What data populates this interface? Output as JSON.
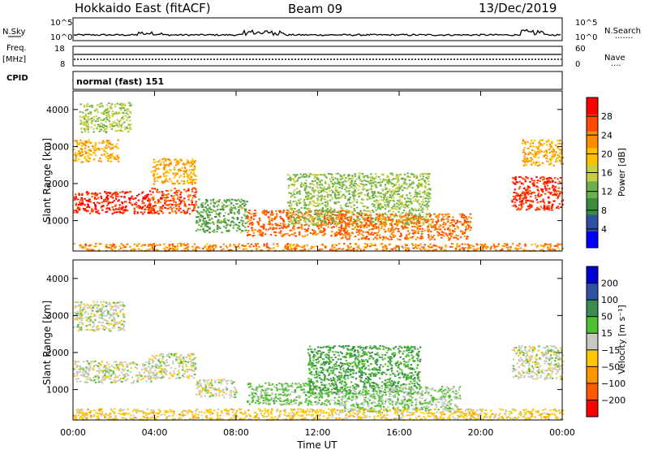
{
  "header": {
    "station": "Hokkaido East (fitACF)",
    "beam": "Beam 09",
    "date": "13/Dec/2019"
  },
  "panels": {
    "nsky": {
      "label": "N.Sky",
      "left_ticks": [
        "10^5",
        "10^0"
      ],
      "right_ticks": [
        "10^5",
        "10^0"
      ],
      "right_label": "N.Search",
      "right_marker": "·······"
    },
    "freq": {
      "label_top": "Freq.",
      "label_unit": "[MHz]",
      "left_ticks": [
        "18",
        "8"
      ],
      "right_ticks": [
        "60",
        "0"
      ],
      "right_label": "Nave",
      "right_marker": "····"
    },
    "cpid": {
      "label": "CPID",
      "value": "normal (fast) 151"
    }
  },
  "chart_data": [
    {
      "type": "heatmap",
      "title": "",
      "ylabel": "Slant Range [km]",
      "xlabel": "",
      "ylim": [
        180,
        4500
      ],
      "yticks": [
        "4000",
        "3000",
        "2000",
        "1000"
      ],
      "x": [
        "00:00",
        "04:00",
        "08:00",
        "12:00",
        "16:00",
        "20:00",
        "00:00"
      ],
      "xlim_hours": [
        0,
        24
      ],
      "colorbar": {
        "label": "Power [dB]",
        "ticks": [
          "28",
          "24",
          "20",
          "16",
          "12",
          "8",
          "4"
        ],
        "range": [
          0,
          30
        ],
        "colors": [
          "#0000ff",
          "#2f4fa0",
          "#3c8c3c",
          "#6ab04c",
          "#c8d040",
          "#ffc000",
          "#ff8c00",
          "#ff4a00",
          "#ff0000"
        ]
      },
      "regions": [
        {
          "x": [
            0.0,
            3.8
          ],
          "y": [
            1200,
            1800
          ],
          "value": 27
        },
        {
          "x": [
            0.0,
            2.2
          ],
          "y": [
            2600,
            3200
          ],
          "value": 20
        },
        {
          "x": [
            0.3,
            2.8
          ],
          "y": [
            3400,
            4200
          ],
          "value": 14
        },
        {
          "x": [
            3.7,
            6.0
          ],
          "y": [
            1200,
            1900
          ],
          "value": 25
        },
        {
          "x": [
            3.8,
            6.0
          ],
          "y": [
            2000,
            2700
          ],
          "value": 20
        },
        {
          "x": [
            6.0,
            8.5
          ],
          "y": [
            700,
            1600
          ],
          "value": 11
        },
        {
          "x": [
            8.5,
            13.5
          ],
          "y": [
            600,
            1300
          ],
          "value": 24
        },
        {
          "x": [
            10.5,
            17.5
          ],
          "y": [
            900,
            2300
          ],
          "value": 13
        },
        {
          "x": [
            13.0,
            19.5
          ],
          "y": [
            500,
            1200
          ],
          "value": 23
        },
        {
          "x": [
            21.5,
            24.0
          ],
          "y": [
            1300,
            2200
          ],
          "value": 26
        },
        {
          "x": [
            22.0,
            24.0
          ],
          "y": [
            2500,
            3200
          ],
          "value": 20
        },
        {
          "x": [
            0.0,
            24.0
          ],
          "y": [
            200,
            400
          ],
          "value": 22
        }
      ]
    },
    {
      "type": "heatmap",
      "title": "",
      "ylabel": "Slant Range [km]",
      "xlabel": "Time UT",
      "ylim": [
        180,
        4500
      ],
      "yticks": [
        "4000",
        "3000",
        "2000",
        "1000"
      ],
      "x": [
        "00:00",
        "04:00",
        "08:00",
        "12:00",
        "16:00",
        "20:00",
        "00:00"
      ],
      "xlim_hours": [
        0,
        24
      ],
      "colorbar": {
        "label": "Velocity [m s⁻¹]",
        "ticks": [
          "200",
          "100",
          "50",
          "15",
          "−15",
          "−50",
          "−100",
          "−200"
        ],
        "range": [
          -250,
          250
        ],
        "colors": [
          "#ff0000",
          "#ff5a00",
          "#ff9600",
          "#ffc800",
          "#c8c8c0",
          "#50c030",
          "#3c8c50",
          "#3050a0",
          "#0000d0"
        ]
      },
      "regions": [
        {
          "x": [
            0.0,
            3.8
          ],
          "y": [
            1200,
            1800
          ],
          "value": 0
        },
        {
          "x": [
            0.0,
            2.5
          ],
          "y": [
            2600,
            3400
          ],
          "value": 0
        },
        {
          "x": [
            3.7,
            6.0
          ],
          "y": [
            1300,
            2000
          ],
          "value": 0
        },
        {
          "x": [
            6.0,
            8.0
          ],
          "y": [
            800,
            1300
          ],
          "value": 0
        },
        {
          "x": [
            8.5,
            13.0
          ],
          "y": [
            600,
            1200
          ],
          "value": 40
        },
        {
          "x": [
            11.5,
            17.0
          ],
          "y": [
            900,
            2200
          ],
          "value": 80
        },
        {
          "x": [
            13.0,
            19.0
          ],
          "y": [
            400,
            1100
          ],
          "value": 35
        },
        {
          "x": [
            0.0,
            24.0
          ],
          "y": [
            200,
            500
          ],
          "value": -50
        },
        {
          "x": [
            21.5,
            24.0
          ],
          "y": [
            1300,
            2200
          ],
          "value": 0
        }
      ]
    }
  ]
}
